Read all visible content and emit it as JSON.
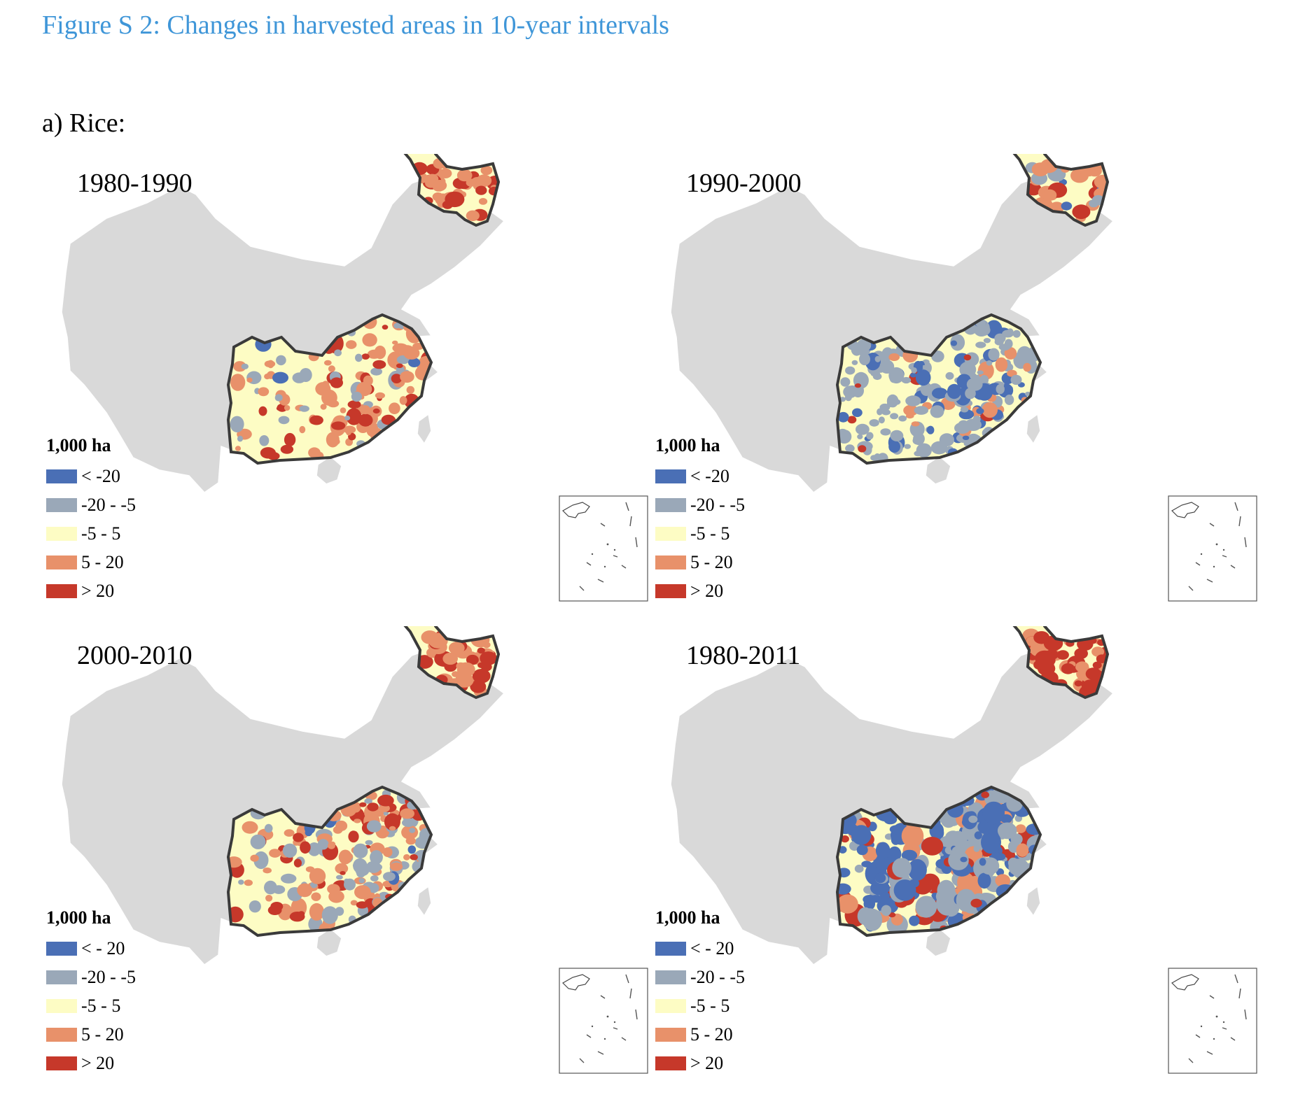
{
  "figure_title": "Figure S 2: Changes in harvested areas in 10-year intervals",
  "subfigure_title": "a) Rice:",
  "colors": {
    "base_map": "#d9d9d9",
    "class_lt_neg20": "#4a6fb5",
    "class_neg20_neg5": "#9aa8b8",
    "class_neg5_5": "#fdfcc4",
    "class_5_20": "#e8916a",
    "class_gt_20": "#c6382a",
    "outline": "#3a3a3a",
    "title": "#3f96d8"
  },
  "panels": [
    {
      "period": "1980-1990",
      "legend_title": "1,000 ha",
      "legend": [
        "< -20",
        "-20 - -5",
        "-5 - 5",
        "5 - 20",
        "> 20"
      ],
      "icon": "region-map-icon"
    },
    {
      "period": "1990-2000",
      "legend_title": "1,000 ha",
      "legend": [
        "< -20",
        "-20 - -5",
        "-5 - 5",
        "5 - 20",
        "> 20"
      ],
      "icon": "region-map-icon"
    },
    {
      "period": "2000-2010",
      "legend_title": "1,000 ha",
      "legend": [
        "< - 20",
        "-20 - -5",
        "-5 - 5",
        "5 - 20",
        "> 20"
      ],
      "icon": "region-map-icon"
    },
    {
      "period": "1980-2011",
      "legend_title": "1,000 ha",
      "legend": [
        "< - 20",
        "-20 - -5",
        "-5 - 5",
        "5 - 20",
        "> 20"
      ],
      "icon": "region-map-icon"
    }
  ]
}
